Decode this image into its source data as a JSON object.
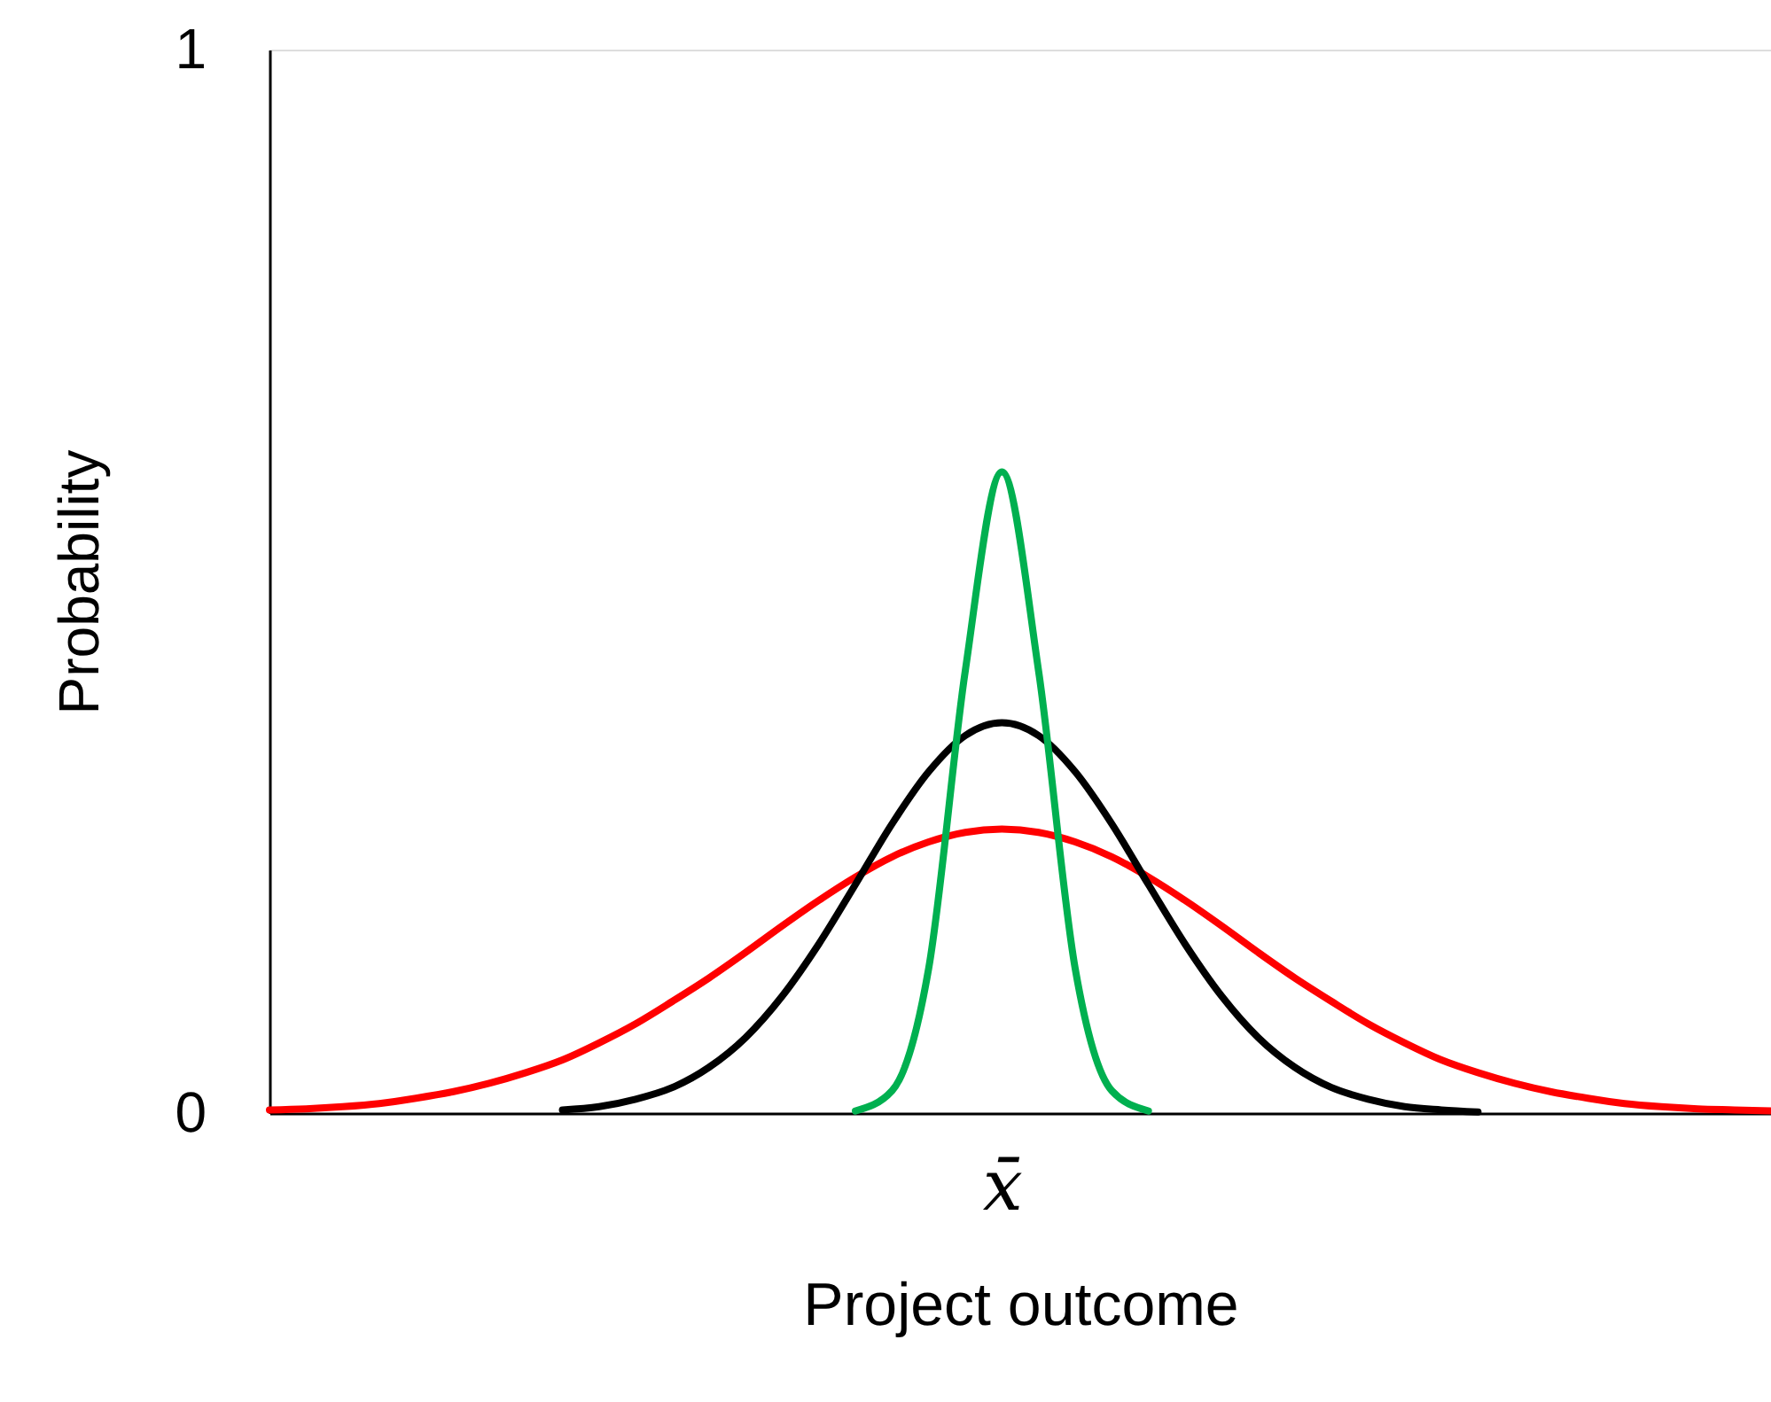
{
  "chart_data": {
    "type": "line",
    "xlabel": "Project outcome",
    "ylabel": "Probability",
    "categories": [
      null,
      null,
      null,
      null,
      null,
      null,
      null,
      null,
      null,
      null,
      null,
      null,
      null,
      null,
      null,
      null,
      null,
      null,
      null,
      null,
      "x̄",
      null,
      null,
      null,
      null,
      null,
      null,
      null,
      null,
      null,
      null,
      null,
      null,
      null,
      null,
      null,
      null,
      null,
      null,
      null,
      null,
      null
    ],
    "series": [
      {
        "color": "#ff0000",
        "values": [
          0.003,
          0.004,
          0.006,
          0.009,
          0.014,
          0.02,
          0.028,
          0.038,
          0.05,
          0.066,
          0.084,
          0.105,
          0.127,
          0.151,
          0.176,
          0.2,
          0.222,
          0.241,
          0.255,
          0.264,
          0.267,
          0.264,
          0.255,
          0.241,
          0.222,
          0.2,
          0.176,
          0.151,
          0.127,
          0.105,
          0.084,
          0.066,
          0.05,
          0.038,
          0.028,
          0.02,
          0.014,
          0.009,
          0.006,
          0.004,
          0.003,
          0.002
        ]
      },
      {
        "color": "#000000",
        "values": [
          null,
          null,
          null,
          null,
          null,
          null,
          null,
          null,
          0.003,
          0.006,
          0.013,
          0.024,
          0.043,
          0.071,
          0.11,
          0.159,
          0.215,
          0.272,
          0.321,
          0.355,
          0.367,
          0.355,
          0.321,
          0.272,
          0.215,
          0.159,
          0.11,
          0.071,
          0.043,
          0.024,
          0.013,
          0.006,
          0.003,
          0.001,
          null,
          null,
          null,
          null,
          null,
          null,
          null,
          null
        ]
      },
      {
        "color": "#00b050",
        "values": [
          null,
          null,
          null,
          null,
          null,
          null,
          null,
          null,
          null,
          null,
          null,
          null,
          null,
          null,
          null,
          null,
          0.002,
          0.021,
          0.136,
          0.416,
          0.603,
          0.416,
          0.136,
          0.021,
          0.002,
          null,
          null,
          null,
          null,
          null,
          null,
          null,
          null,
          null,
          null,
          null,
          null,
          null,
          null,
          null,
          null,
          null
        ]
      }
    ],
    "ylim": [
      0,
      1
    ],
    "yticks": [
      0,
      1
    ],
    "line_style": "solid"
  }
}
